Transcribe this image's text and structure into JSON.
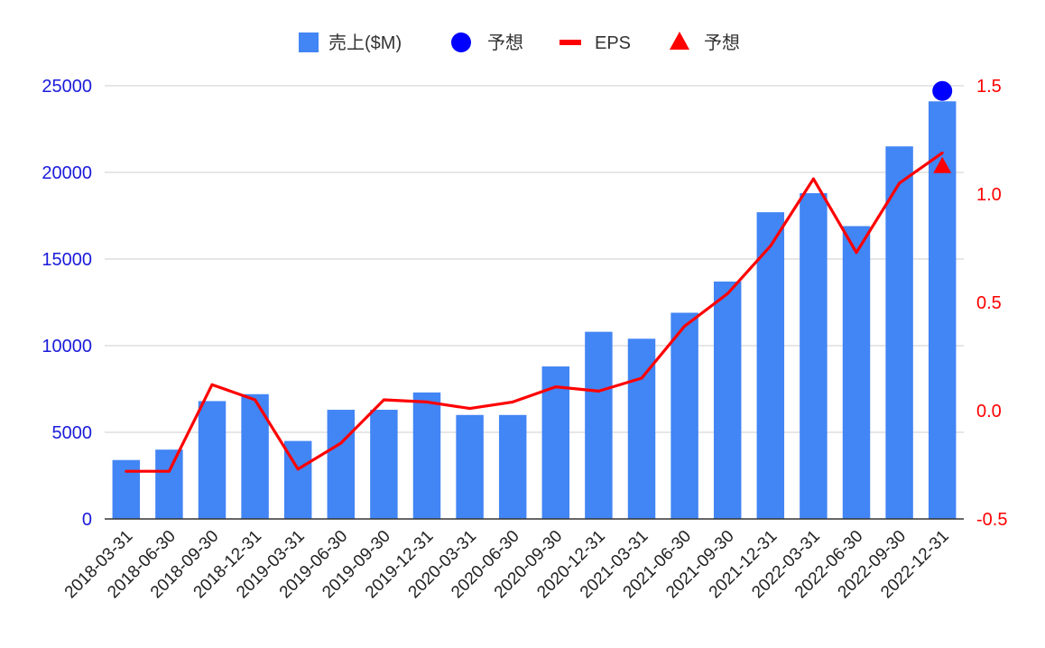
{
  "chart_data": {
    "type": "bar",
    "categories": [
      "2018-03-31",
      "2018-06-30",
      "2018-09-30",
      "2018-12-31",
      "2019-03-31",
      "2019-06-30",
      "2019-09-30",
      "2019-12-31",
      "2020-03-31",
      "2020-06-30",
      "2020-09-30",
      "2020-12-31",
      "2021-03-31",
      "2021-06-30",
      "2021-09-30",
      "2021-12-31",
      "2022-03-31",
      "2022-06-30",
      "2022-09-30",
      "2022-12-31"
    ],
    "series": [
      {
        "name": "売上($M)",
        "kind": "bar",
        "axis": "left",
        "color": "#4285f4",
        "values": [
          3400,
          4000,
          6800,
          7200,
          4500,
          6300,
          6300,
          7300,
          6000,
          6000,
          8800,
          10800,
          10400,
          11900,
          13700,
          17700,
          18800,
          16900,
          21500,
          24100
        ]
      },
      {
        "name": "予想",
        "kind": "circle",
        "axis": "left",
        "color": "#0000ff",
        "points": [
          {
            "category": "2022-12-31",
            "value": 24700
          }
        ]
      },
      {
        "name": "EPS",
        "kind": "line",
        "axis": "right",
        "color": "#ff0000",
        "values": [
          -0.28,
          -0.28,
          0.12,
          0.05,
          -0.27,
          -0.15,
          0.05,
          0.04,
          0.01,
          0.04,
          0.11,
          0.09,
          0.15,
          0.39,
          0.54,
          0.76,
          1.07,
          0.73,
          1.05,
          1.19
        ]
      },
      {
        "name": "予想",
        "kind": "triangle",
        "axis": "right",
        "color": "#ff0000",
        "points": [
          {
            "category": "2022-12-31",
            "value": 1.13
          }
        ]
      }
    ],
    "y_left": {
      "min": 0,
      "max": 25000,
      "ticks": [
        "0",
        "5000",
        "10000",
        "15000",
        "20000",
        "25000"
      ],
      "color": "#1a1adb"
    },
    "y_right": {
      "min": -0.5,
      "max": 1.5,
      "ticks": [
        "-0.5",
        "0.0",
        "0.5",
        "1.0",
        "1.5"
      ],
      "color": "#ff0000"
    },
    "legend_position": "top",
    "grid": true
  }
}
